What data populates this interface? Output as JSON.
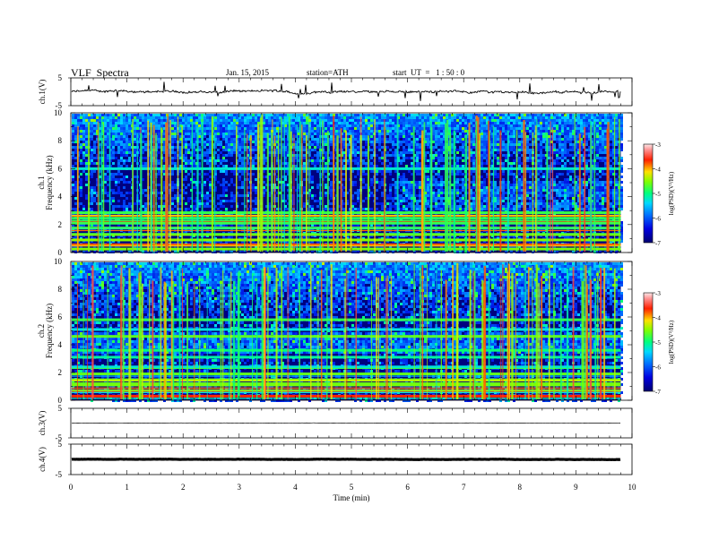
{
  "header": {
    "title": "VLF  Spectra",
    "date": "Jan. 15, 2015",
    "station": "station=ATH",
    "start_ut": "start  UT  =   1 : 50 : 0"
  },
  "chart_data": [
    {
      "type": "line",
      "name": "ch1-waveform",
      "ylabel": "ch.1(V)",
      "yticks": [
        "5",
        "-5"
      ],
      "ylim": [
        -5,
        5
      ],
      "baseline_v": 0.0,
      "xlim": [
        0,
        10
      ],
      "data_end_min": 9.8
    },
    {
      "type": "heatmap",
      "name": "ch1-spectrogram",
      "ylabel_channel": "ch.1",
      "ylabel": "Frequency  (kHz)",
      "ylim": [
        0,
        10
      ],
      "yticks": [
        "0",
        "2",
        "4",
        "6",
        "8",
        "10"
      ],
      "xlim": [
        0,
        10
      ],
      "data_end_min": 9.8,
      "colorbar": {
        "label": "log(PSD)(V²/Hz)",
        "range": [
          -7,
          -3
        ],
        "ticks": [
          "-3",
          "-4",
          "-5",
          "-6",
          "-7"
        ]
      },
      "bands_khz": [
        0.25,
        0.55,
        0.9,
        1.3,
        1.75,
        2.1,
        2.45,
        2.85,
        6.0
      ]
    },
    {
      "type": "heatmap",
      "name": "ch2-spectrogram",
      "ylabel_channel": "ch.2",
      "ylabel": "Frequency  (kHz)",
      "ylim": [
        0,
        10
      ],
      "yticks": [
        "0",
        "2",
        "4",
        "6",
        "8",
        "10"
      ],
      "xlim": [
        0,
        10
      ],
      "data_end_min": 9.8,
      "colorbar": {
        "label": "log(PSD)(V²/Hz)",
        "range": [
          -7,
          -3
        ],
        "ticks": [
          "-3",
          "-4",
          "-5",
          "-6",
          "-7"
        ]
      },
      "bands_khz": [
        0.3,
        0.7,
        1.1,
        1.45,
        1.9,
        2.4,
        3.1,
        3.6,
        4.6,
        5.1,
        5.8
      ]
    },
    {
      "type": "line",
      "name": "ch3-waveform",
      "ylabel": "ch.3(V)",
      "yticks": [
        "5",
        "-5"
      ],
      "ylim": [
        -5,
        5
      ],
      "baseline_v": 0.0,
      "xlim": [
        0,
        10
      ],
      "data_end_min": 9.8
    },
    {
      "type": "line",
      "name": "ch4-waveform",
      "ylabel": "ch.4(V)",
      "yticks": [
        "5",
        "-5"
      ],
      "ylim": [
        -5,
        5
      ],
      "baseline_v": 0.0,
      "xlim": [
        0,
        10
      ],
      "data_end_min": 9.8
    }
  ],
  "xaxis": {
    "label": "Time  (min)",
    "ticks": [
      "0",
      "1",
      "2",
      "3",
      "4",
      "5",
      "6",
      "7",
      "8",
      "9",
      "10"
    ],
    "range": [
      0,
      10
    ]
  }
}
